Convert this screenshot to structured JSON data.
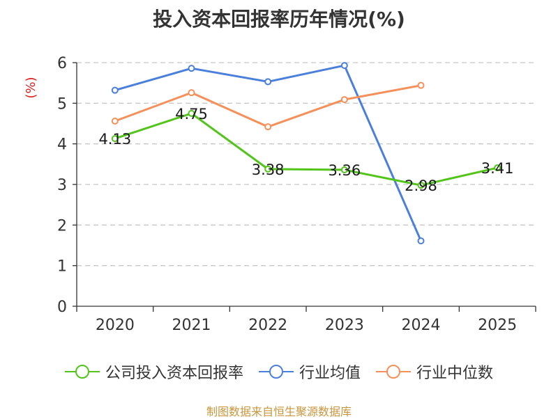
{
  "chart_data": {
    "type": "line",
    "title": "投入资本回报率历年情况(%)",
    "ylabel": "(%)",
    "categories": [
      "2020",
      "2021",
      "2022",
      "2023",
      "2024",
      "2025"
    ],
    "ylim": [
      0,
      6
    ],
    "yticks": [
      0,
      1,
      2,
      3,
      4,
      5,
      6
    ],
    "grid": true,
    "legend_position": "bottom",
    "series": [
      {
        "name": "公司投入资本回报率",
        "color": "#52c41a",
        "values": [
          4.13,
          4.75,
          3.38,
          3.36,
          2.98,
          3.41
        ],
        "labels": [
          "4.13",
          "4.75",
          "3.38",
          "3.36",
          "2.98",
          "3.41"
        ]
      },
      {
        "name": "行业均值",
        "color": "#4a7fdc",
        "values": [
          5.32,
          5.86,
          5.53,
          5.93,
          1.61,
          null
        ]
      },
      {
        "name": "行业中位数",
        "color": "#f5905a",
        "values": [
          4.56,
          5.26,
          4.42,
          5.09,
          5.44,
          null
        ]
      }
    ]
  },
  "source": "制图数据来自恒生聚源数据库",
  "colors": {
    "axis": "#333333",
    "grid": "#c8c8c8",
    "ylabel": "#e02020"
  }
}
